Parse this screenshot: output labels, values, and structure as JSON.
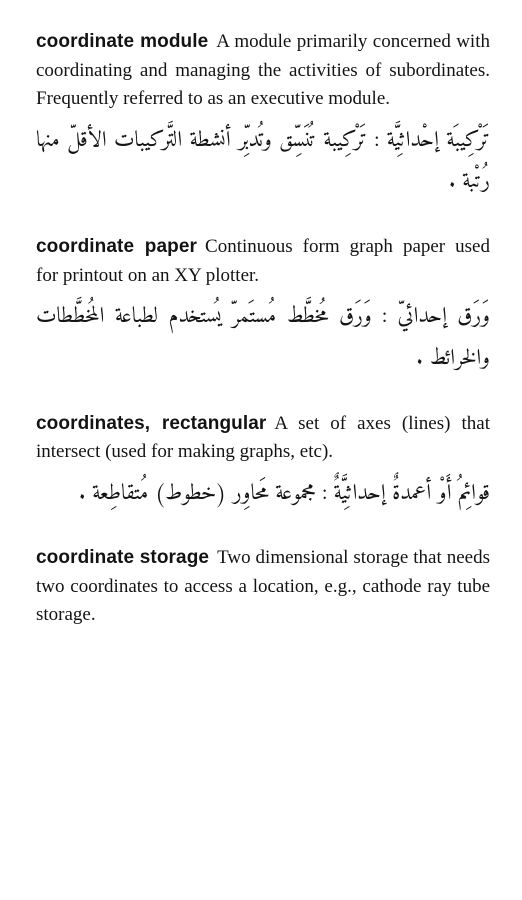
{
  "entries": [
    {
      "term": "coordinate module",
      "definition": "A module primarily concerned with coordinating and managing the activities of subordinates. Frequently referred to as an executive module.",
      "arabic": "تَرْكِيبَة إحْداثِيَّة : تَرْكِيبة تُنَسِّق وتُدبِّر أنشطة التَّركيبات الأقلّ منها رُتْبة ."
    },
    {
      "term": "coordinate paper",
      "definition": "Continuous form graph paper used for printout on an XY plotter.",
      "arabic": "وَرَق إحدائيّ : وَرَق مُخطَّط مُستَمرّ يُستخدم لطباعة المُخطَّطات والخرائط ."
    },
    {
      "term": "coordinates, rectangular",
      "definition": "A set of axes (lines) that intersect (used for making graphs, etc).",
      "arabic": "قوائِمُ أَوْ أعمدةٌ إحداثِيَّةٌ : مجموعة مَحاوِر (خطوط) مُتقاطِعة ."
    },
    {
      "term": "coordinate storage",
      "definition": "Two dimensional storage that needs two coordinates to access a location, e.g., cathode ray tube storage.",
      "arabic": ""
    }
  ]
}
